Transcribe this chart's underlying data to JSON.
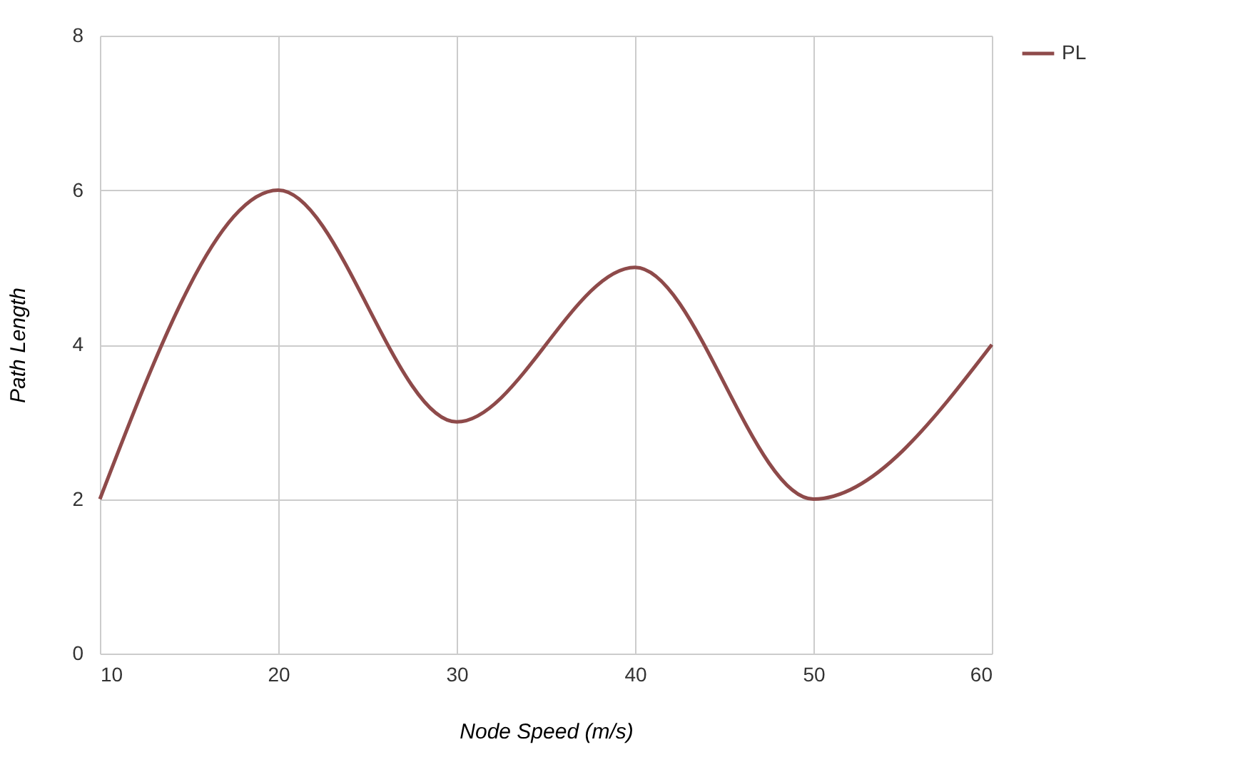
{
  "chart_data": {
    "type": "line",
    "xlabel": "Node Speed (m/s)",
    "ylabel": "Path Length",
    "x": [
      10,
      20,
      30,
      40,
      50,
      60
    ],
    "series": [
      {
        "name": "PL",
        "color": "#8e4a4a",
        "values": [
          2,
          6,
          3,
          5,
          2,
          4
        ]
      }
    ],
    "xlim": [
      10,
      60
    ],
    "xticks": [
      10,
      20,
      30,
      40,
      50,
      60
    ],
    "ylim": [
      0,
      8
    ],
    "yticks": [
      0,
      2,
      4,
      6,
      8
    ],
    "grid": true,
    "legend": "top right",
    "marker": "none",
    "line_style": "solid"
  }
}
